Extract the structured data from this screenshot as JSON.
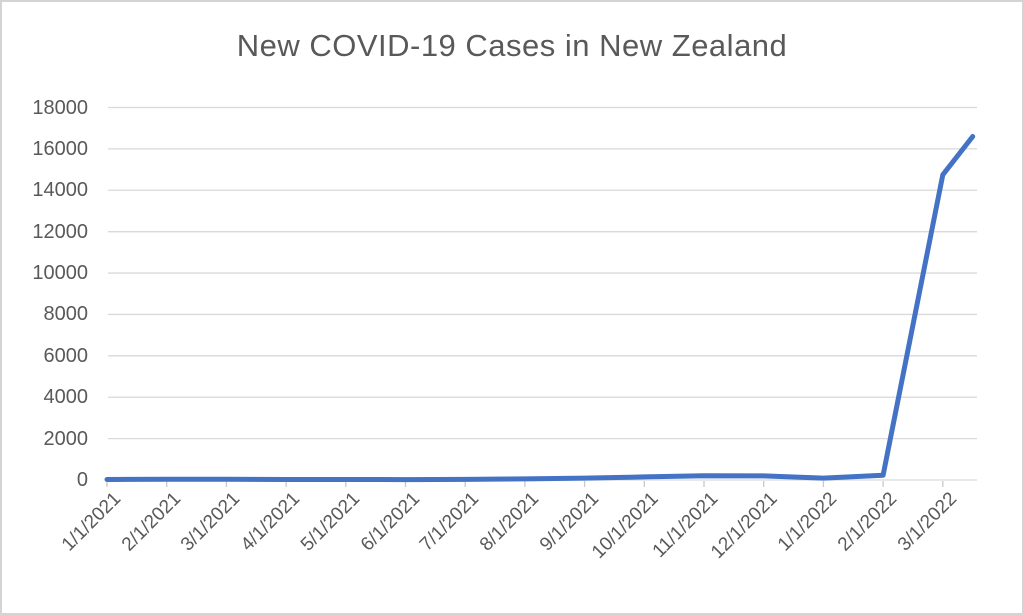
{
  "chart_data": {
    "type": "line",
    "title": "New COVID-19 Cases in New Zealand",
    "xlabel": "",
    "ylabel": "",
    "categories": [
      "1/1/2021",
      "2/1/2021",
      "3/1/2021",
      "4/1/2021",
      "5/1/2021",
      "6/1/2021",
      "7/1/2021",
      "8/1/2021",
      "9/1/2021",
      "10/1/2021",
      "11/1/2021",
      "12/1/2021",
      "1/1/2022",
      "2/1/2022",
      "3/1/2022"
    ],
    "y_ticks": [
      0,
      2000,
      4000,
      6000,
      8000,
      10000,
      12000,
      14000,
      16000,
      18000
    ],
    "ylim": [
      0,
      18000
    ],
    "grid": true,
    "legend": false,
    "x_note": "x = month index into categories; final point extends past last tick",
    "series": [
      {
        "color": "#4472C4",
        "points": [
          {
            "x": 0,
            "y": 25
          },
          {
            "x": 1,
            "y": 40
          },
          {
            "x": 2,
            "y": 35
          },
          {
            "x": 3,
            "y": 25
          },
          {
            "x": 4,
            "y": 25
          },
          {
            "x": 5,
            "y": 20
          },
          {
            "x": 6,
            "y": 30
          },
          {
            "x": 7,
            "y": 55
          },
          {
            "x": 8,
            "y": 90
          },
          {
            "x": 9,
            "y": 150
          },
          {
            "x": 10,
            "y": 210
          },
          {
            "x": 11,
            "y": 200
          },
          {
            "x": 12,
            "y": 90
          },
          {
            "x": 13,
            "y": 230
          },
          {
            "x": 14,
            "y": 14750
          },
          {
            "x": 14.5,
            "y": 16600
          }
        ]
      }
    ],
    "colors": {
      "line": "#4472C4",
      "gridline": "#D9D9D9",
      "tick_mark": "#C9C9C9",
      "text": "#595959"
    }
  }
}
